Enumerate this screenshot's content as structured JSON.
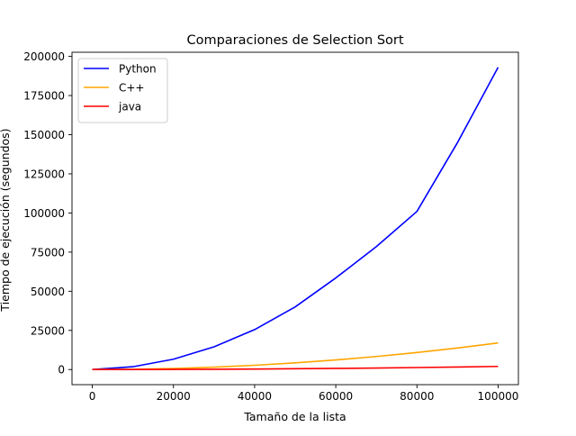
{
  "chart_data": {
    "type": "line",
    "title": "Comparaciones de Selection Sort",
    "xlabel": "Tamaño de la lista",
    "ylabel": "Tiempo de ejecución (segundos)",
    "xlim": [
      -5000,
      105000
    ],
    "ylim": [
      -9650,
      202650
    ],
    "x_ticks": [
      0,
      20000,
      40000,
      60000,
      80000,
      100000
    ],
    "x_tick_labels": [
      "0",
      "20000",
      "40000",
      "60000",
      "80000",
      "100000"
    ],
    "y_ticks": [
      0,
      25000,
      50000,
      75000,
      100000,
      125000,
      150000,
      175000,
      200000
    ],
    "y_tick_labels": [
      "0",
      "25000",
      "50000",
      "75000",
      "100000",
      "125000",
      "150000",
      "175000",
      "200000"
    ],
    "grid": false,
    "legend_position": "top-left",
    "x": [
      0,
      10000,
      20000,
      30000,
      40000,
      50000,
      60000,
      70000,
      80000,
      90000,
      100000
    ],
    "series": [
      {
        "name": "Python",
        "color": "#0000ff",
        "values": [
          0,
          1800,
          6600,
          14500,
          25500,
          40000,
          58500,
          78500,
          101000,
          145000,
          193000
        ]
      },
      {
        "name": "C++",
        "color": "#ffa500",
        "values": [
          0,
          170,
          680,
          1530,
          2720,
          4250,
          6120,
          8330,
          10880,
          13770,
          17000
        ]
      },
      {
        "name": "java",
        "color": "#ff0000",
        "values": [
          0,
          20,
          80,
          180,
          320,
          500,
          720,
          980,
          1280,
          1620,
          2000
        ]
      }
    ]
  }
}
